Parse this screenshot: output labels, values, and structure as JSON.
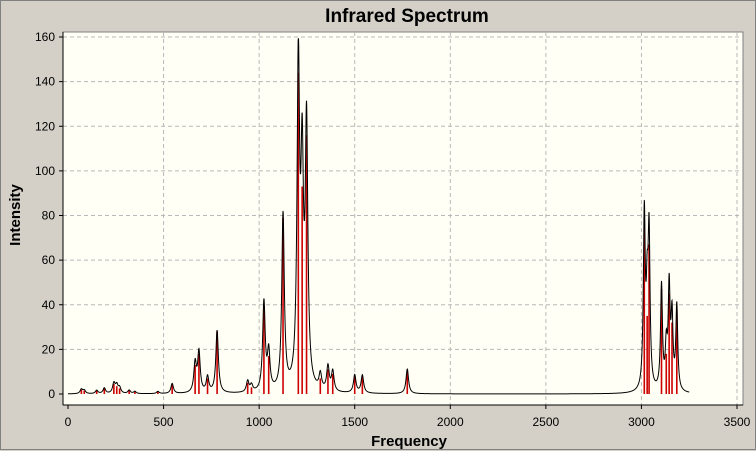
{
  "chart_data": {
    "type": "line",
    "title": "Infrared Spectrum",
    "xlabel": "Frequency",
    "ylabel": "Intensity",
    "xlim": [
      0,
      3500
    ],
    "ylim": [
      0,
      160
    ],
    "x_ticks": [
      0,
      500,
      1000,
      1500,
      2000,
      2500,
      3000,
      3500
    ],
    "y_ticks": [
      0,
      20,
      40,
      60,
      80,
      100,
      120,
      140,
      160
    ],
    "grid": true,
    "legend": "none",
    "colors": {
      "plot_background": "#fffff5",
      "frame_background": "#d4d0c8",
      "spectrum_line": "#000000",
      "stick_lines": "#cc0000",
      "grid": "#b8b8b8"
    },
    "series": [
      {
        "style": "sticks",
        "points": [
          [
            70,
            2
          ],
          [
            85,
            1.5
          ],
          [
            150,
            1.5
          ],
          [
            190,
            2.5
          ],
          [
            240,
            4.5
          ],
          [
            255,
            3.5
          ],
          [
            270,
            2.5
          ],
          [
            320,
            1.5
          ],
          [
            350,
            1
          ],
          [
            470,
            1
          ],
          [
            545,
            4.5
          ],
          [
            665,
            13
          ],
          [
            685,
            18
          ],
          [
            730,
            7
          ],
          [
            780,
            28
          ],
          [
            940,
            5
          ],
          [
            960,
            3
          ],
          [
            1025,
            40
          ],
          [
            1050,
            17
          ],
          [
            1125,
            79
          ],
          [
            1205,
            144
          ],
          [
            1225,
            93
          ],
          [
            1248,
            116
          ],
          [
            1320,
            7
          ],
          [
            1360,
            11
          ],
          [
            1385,
            9
          ],
          [
            1500,
            8
          ],
          [
            1540,
            8
          ],
          [
            1775,
            11
          ],
          [
            3015,
            78
          ],
          [
            3030,
            35
          ],
          [
            3040,
            67
          ],
          [
            3105,
            47
          ],
          [
            3130,
            18
          ],
          [
            3145,
            45
          ],
          [
            3160,
            32
          ],
          [
            3185,
            38
          ]
        ]
      },
      {
        "style": "envelope",
        "widths": {
          "default": 8,
          "high_frequency": 6
        }
      }
    ]
  }
}
